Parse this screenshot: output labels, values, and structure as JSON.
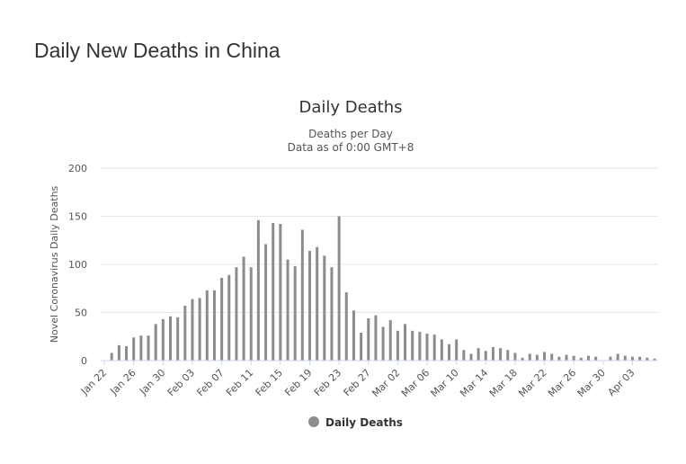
{
  "page": {
    "title": "Daily New Deaths in China"
  },
  "chart_data": {
    "type": "bar",
    "title": "Daily Deaths",
    "subtitle_lines": [
      "Deaths per Day",
      "Data as of 0:00 GMT+8"
    ],
    "xlabel": "",
    "ylabel": "Novel Coronavirus Daily Deaths",
    "ylim": [
      0,
      200
    ],
    "yticks": [
      0,
      50,
      100,
      150,
      200
    ],
    "grid": true,
    "legend": {
      "position": "bottom-center",
      "entries": [
        "Daily Deaths"
      ]
    },
    "tick_labels": [
      "Jan 22",
      "Jan 26",
      "Jan 30",
      "Feb 03",
      "Feb 07",
      "Feb 11",
      "Feb 15",
      "Feb 19",
      "Feb 23",
      "Feb 27",
      "Mar 02",
      "Mar 06",
      "Mar 10",
      "Mar 14",
      "Mar 18",
      "Mar 22",
      "Mar 26",
      "Mar 30",
      "Apr 03"
    ],
    "series": [
      {
        "name": "Daily Deaths",
        "color": "#8c8c8c",
        "values": [
          0,
          8,
          16,
          15,
          24,
          26,
          26,
          38,
          43,
          46,
          45,
          57,
          64,
          65,
          73,
          73,
          86,
          89,
          97,
          108,
          97,
          146,
          121,
          143,
          142,
          105,
          98,
          136,
          114,
          118,
          109,
          97,
          150,
          71,
          52,
          29,
          44,
          47,
          35,
          42,
          31,
          38,
          31,
          30,
          28,
          27,
          22,
          17,
          22,
          11,
          7,
          13,
          10,
          14,
          13,
          11,
          8,
          3,
          7,
          6,
          9,
          7,
          4,
          6,
          5,
          3,
          5,
          4,
          0,
          4,
          7,
          5,
          4,
          4,
          3,
          2
        ]
      }
    ]
  }
}
